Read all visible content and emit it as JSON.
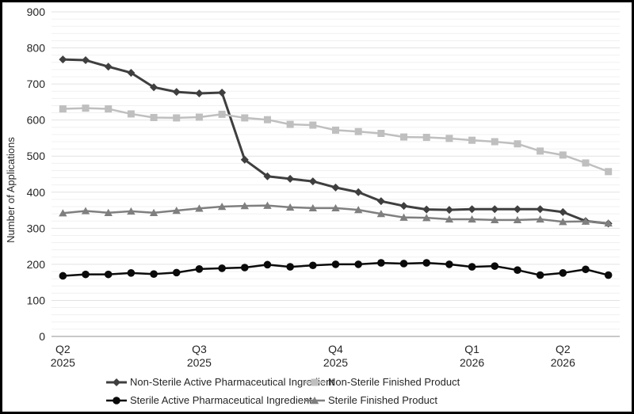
{
  "chart_data": {
    "type": "line",
    "title": "",
    "xlabel": "",
    "ylabel": "Number of Applications",
    "ylim": [
      0,
      900
    ],
    "y_tick_interval": 100,
    "y_minor_gridline_interval": 20,
    "grid": true,
    "legend_position": "bottom",
    "n_points": 25,
    "x_tick_labels": [
      {
        "position": 0,
        "quarter": "Q2",
        "year": "2025"
      },
      {
        "position": 6,
        "quarter": "Q3",
        "year": "2025"
      },
      {
        "position": 12,
        "quarter": "Q4",
        "year": "2025"
      },
      {
        "position": 18,
        "quarter": "Q1",
        "year": "2026"
      },
      {
        "position": 22,
        "quarter": "Q2",
        "year": "2026"
      }
    ],
    "series": [
      {
        "name": "Non-Sterile Active Pharmaceutical Ingredient",
        "marker": "diamond",
        "color": "#3f3f3f",
        "line_width": 3,
        "values": [
          768,
          766,
          748,
          731,
          691,
          678,
          674,
          676,
          490,
          444,
          437,
          430,
          413,
          400,
          375,
          362,
          352,
          351,
          353,
          353,
          353,
          353,
          345,
          320,
          313
        ]
      },
      {
        "name": "Non-Sterile Finished Product",
        "marker": "square",
        "color": "#bfbfbf",
        "line_width": 2.5,
        "values": [
          631,
          633,
          631,
          617,
          607,
          606,
          608,
          616,
          606,
          601,
          588,
          586,
          572,
          568,
          563,
          553,
          552,
          549,
          544,
          540,
          534,
          514,
          503,
          481,
          457
        ]
      },
      {
        "name": "Sterile Active Pharmaceutical Ingredient",
        "marker": "circle",
        "color": "#0a0a0a",
        "line_width": 2.5,
        "values": [
          168,
          172,
          172,
          176,
          173,
          177,
          187,
          189,
          191,
          199,
          193,
          197,
          200,
          200,
          204,
          202,
          204,
          200,
          193,
          195,
          184,
          170,
          176,
          186,
          170
        ]
      },
      {
        "name": "Sterile Finished Product",
        "marker": "triangle",
        "color": "#7f7f7f",
        "line_width": 2.5,
        "values": [
          342,
          348,
          343,
          347,
          343,
          349,
          355,
          360,
          362,
          363,
          358,
          356,
          356,
          351,
          340,
          330,
          329,
          325,
          325,
          323,
          323,
          325,
          318,
          319,
          314
        ]
      }
    ],
    "legend_rows": [
      [
        0,
        1
      ],
      [
        2,
        3
      ]
    ],
    "colors": {
      "axis_line": "#a8a8a8",
      "major_gridline": "#e2e2e2",
      "minor_gridline": "#f0f0f0",
      "tick_text": "#262626"
    }
  }
}
